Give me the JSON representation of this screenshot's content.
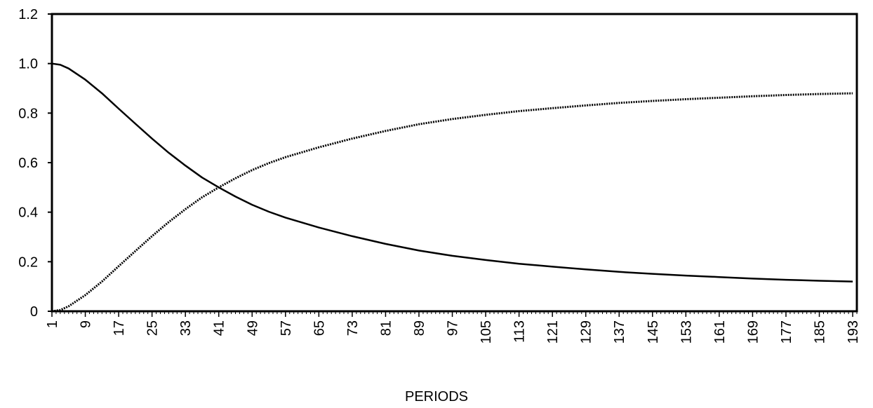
{
  "chart_data": {
    "type": "line",
    "xlabel": "PERIODS",
    "ylabel": "",
    "title": "",
    "xlim": [
      1,
      194
    ],
    "ylim": [
      0,
      1.2
    ],
    "y_ticks": [
      "0",
      "0.2",
      "0.4",
      "0.6",
      "0.8",
      "1.0",
      "1.2"
    ],
    "x_ticks": [
      1,
      9,
      17,
      25,
      33,
      41,
      49,
      57,
      65,
      73,
      81,
      89,
      97,
      105,
      113,
      121,
      129,
      137,
      145,
      153,
      161,
      169,
      177,
      185,
      193
    ],
    "grid": false,
    "legend": "none",
    "line_color": "#000000",
    "series": [
      {
        "style": "solid",
        "x": [
          1,
          3,
          5,
          9,
          13,
          17,
          21,
          25,
          29,
          33,
          37,
          41,
          45,
          49,
          53,
          57,
          65,
          73,
          81,
          89,
          97,
          105,
          113,
          121,
          129,
          137,
          145,
          153,
          161,
          169,
          177,
          185,
          193
        ],
        "values": [
          1.0,
          0.995,
          0.98,
          0.935,
          0.88,
          0.818,
          0.757,
          0.697,
          0.64,
          0.588,
          0.54,
          0.5,
          0.463,
          0.43,
          0.402,
          0.378,
          0.338,
          0.303,
          0.272,
          0.245,
          0.224,
          0.207,
          0.192,
          0.18,
          0.169,
          0.159,
          0.151,
          0.144,
          0.138,
          0.132,
          0.127,
          0.123,
          0.12
        ]
      },
      {
        "style": "dotted",
        "x": [
          1,
          3,
          5,
          9,
          13,
          17,
          21,
          25,
          29,
          33,
          37,
          41,
          45,
          49,
          53,
          57,
          65,
          73,
          81,
          89,
          97,
          105,
          113,
          121,
          129,
          137,
          145,
          153,
          161,
          169,
          177,
          185,
          193
        ],
        "values": [
          0.0,
          0.005,
          0.02,
          0.065,
          0.12,
          0.182,
          0.243,
          0.303,
          0.36,
          0.412,
          0.46,
          0.5,
          0.537,
          0.57,
          0.598,
          0.622,
          0.662,
          0.697,
          0.728,
          0.755,
          0.776,
          0.793,
          0.808,
          0.82,
          0.831,
          0.841,
          0.849,
          0.856,
          0.862,
          0.868,
          0.873,
          0.877,
          0.88
        ]
      }
    ]
  }
}
